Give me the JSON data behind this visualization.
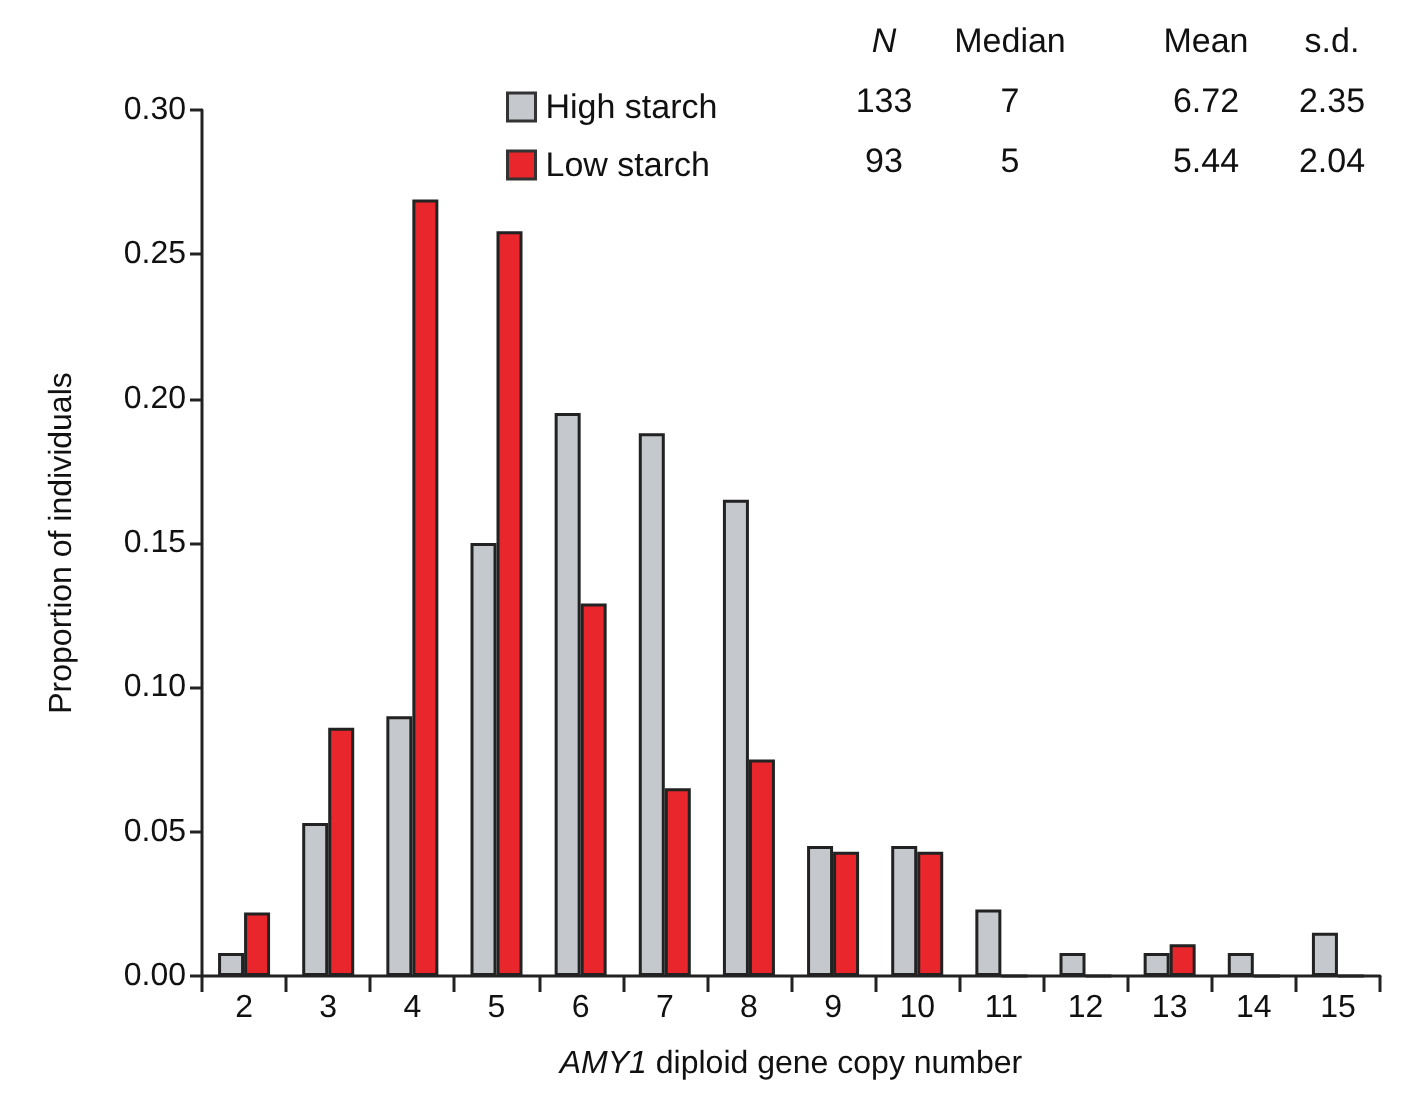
{
  "chart_data": {
    "type": "bar",
    "xlabel": "AMY1 diploid gene copy number",
    "ylabel": "Proportion of individuals",
    "categories": [
      "2",
      "3",
      "4",
      "5",
      "6",
      "7",
      "8",
      "9",
      "10",
      "11",
      "12",
      "13",
      "14",
      "15"
    ],
    "series": [
      {
        "name": "High starch",
        "color": "#c5c8cd",
        "values": [
          0.008,
          0.053,
          0.09,
          0.15,
          0.195,
          0.188,
          0.165,
          0.045,
          0.045,
          0.023,
          0.008,
          0.008,
          0.008,
          0.015
        ]
      },
      {
        "name": "Low starch",
        "color": "#e8262b",
        "values": [
          0.022,
          0.086,
          0.269,
          0.258,
          0.129,
          0.065,
          0.075,
          0.043,
          0.043,
          0,
          0,
          0.011,
          0,
          0
        ]
      }
    ],
    "ylim": [
      0,
      0.3
    ],
    "yticks": [
      {
        "value": 0,
        "label": "0.00"
      },
      {
        "value": 0.05,
        "label": "0.05"
      },
      {
        "value": 0.1,
        "label": "0.10"
      },
      {
        "value": 0.15,
        "label": "0.15"
      },
      {
        "value": 0.2,
        "label": "0.20"
      },
      {
        "value": 0.25,
        "label": "0.25"
      },
      {
        "value": 0.3,
        "label": "0.30"
      }
    ],
    "annotations": [
      "N",
      "Median",
      "Mean",
      "s.d.",
      "133",
      "7",
      "6.72",
      "2.35",
      "93",
      "5",
      "5.44",
      "2.04"
    ],
    "legend": "top",
    "grid": false
  }
}
